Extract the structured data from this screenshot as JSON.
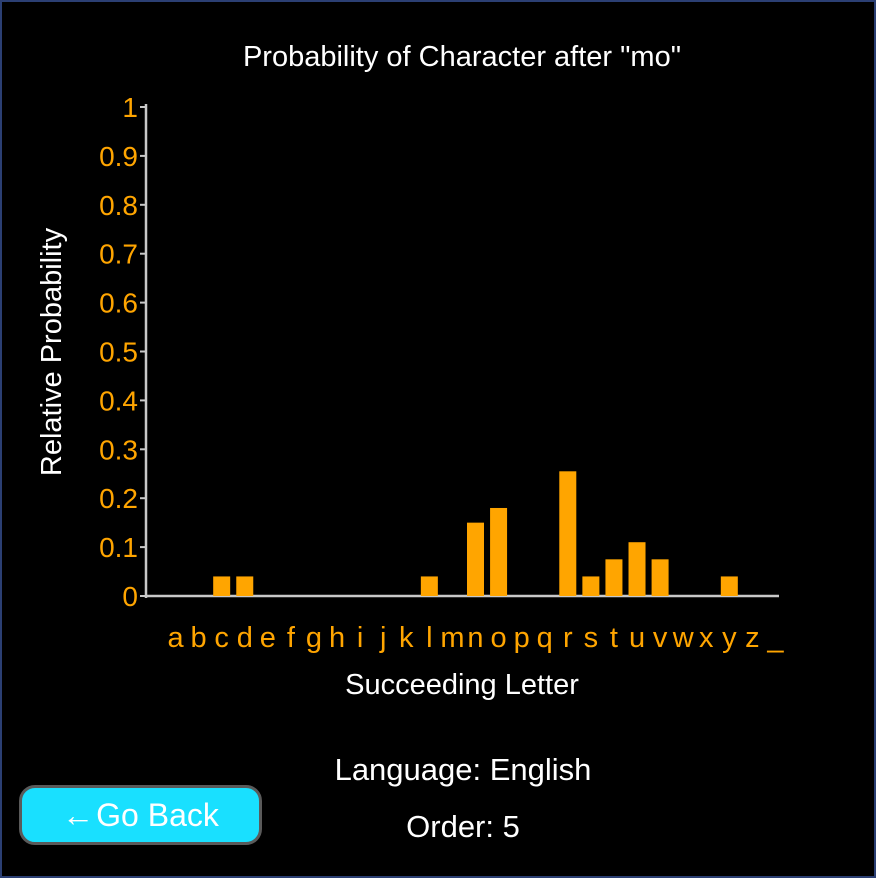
{
  "chart_data": {
    "type": "bar",
    "title": "Probability of Character after \"mo\"",
    "xlabel": "Succeeding Letter",
    "ylabel": "Relative Probability",
    "ylim": [
      0,
      1
    ],
    "yticks": [
      0,
      0.1,
      0.2,
      0.3,
      0.4,
      0.5,
      0.6,
      0.7,
      0.8,
      0.9,
      1
    ],
    "ytick_labels": [
      "0",
      "0.1",
      "0.2",
      "0.3",
      "0.4",
      "0.5",
      "0.6",
      "0.7",
      "0.8",
      "0.9",
      "1"
    ],
    "categories": [
      "a",
      "b",
      "c",
      "d",
      "e",
      "f",
      "g",
      "h",
      "i",
      "j",
      "k",
      "l",
      "m",
      "n",
      "o",
      "p",
      "q",
      "r",
      "s",
      "t",
      "u",
      "v",
      "w",
      "x",
      "y",
      "z",
      "_"
    ],
    "values": [
      0,
      0,
      0.04,
      0.04,
      0,
      0,
      0,
      0,
      0,
      0,
      0,
      0.04,
      0,
      0.15,
      0.18,
      0,
      0,
      0.255,
      0.04,
      0.075,
      0.11,
      0.075,
      0,
      0,
      0.04,
      0,
      0
    ],
    "grid": false,
    "bar_color": "#ffa500",
    "axis_color": "#c8c8c8",
    "tick_label_color": "#ffa500",
    "text_color": "#ffffff",
    "background": "#000000"
  },
  "info": {
    "language": "Language: English",
    "order": "Order: 5"
  },
  "go_back": {
    "arrow": "←",
    "label": "Go Back",
    "color": "#19e0ff"
  }
}
